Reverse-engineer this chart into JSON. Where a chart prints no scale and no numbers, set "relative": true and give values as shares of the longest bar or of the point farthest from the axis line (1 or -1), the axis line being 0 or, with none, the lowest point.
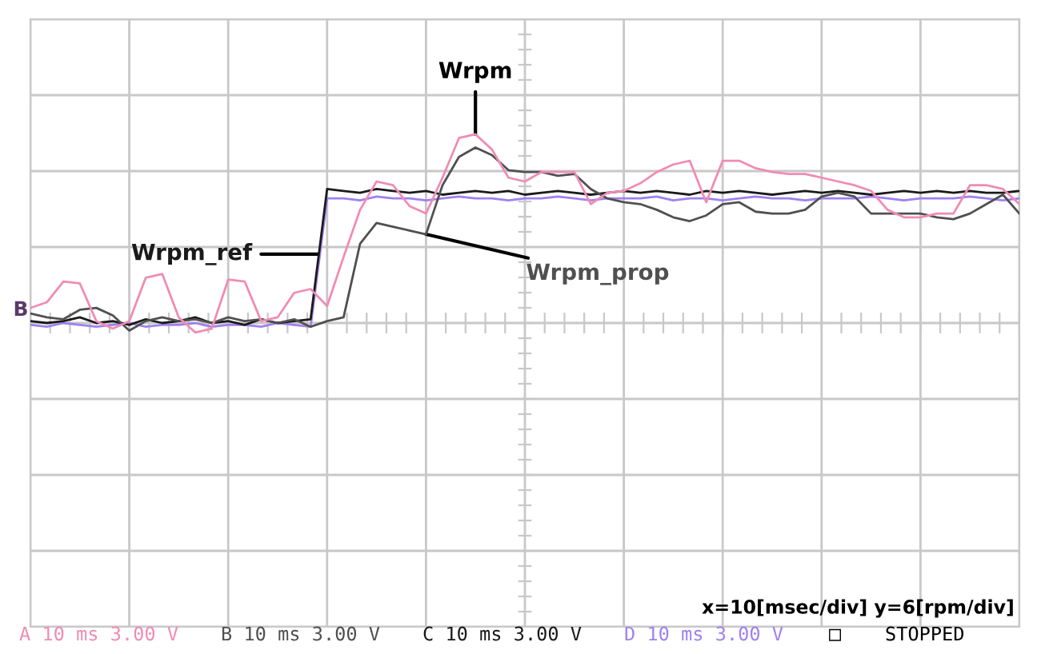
{
  "chart_data": {
    "type": "line",
    "relative": true,
    "grid": true,
    "legend": false,
    "marker": "none",
    "line_style": "solid",
    "categories": [
      null,
      null,
      null,
      null,
      null,
      null,
      null,
      null,
      null,
      null,
      null,
      null,
      null,
      null,
      null,
      null,
      null,
      null,
      null,
      null,
      null,
      null,
      null,
      null,
      null,
      null,
      null,
      null,
      null,
      null,
      null,
      null,
      null,
      null,
      null,
      null,
      null,
      null,
      null,
      null,
      null,
      null,
      null,
      null,
      null,
      null,
      null,
      null,
      null,
      null,
      null,
      null,
      null,
      null,
      null,
      null,
      null,
      null,
      null,
      null,
      null
    ],
    "series": [
      {
        "name": "Wrpm",
        "color": "#f08cb4",
        "values": [
          0.08,
          0.11,
          0.22,
          0.21,
          0.01,
          -0.03,
          0.01,
          0.24,
          0.26,
          0.03,
          -0.05,
          -0.03,
          0.23,
          0.22,
          0.01,
          0.03,
          0.16,
          0.18,
          0.09,
          0.35,
          0.6,
          0.75,
          0.73,
          0.62,
          0.58,
          0.77,
          0.98,
          1.0,
          0.92,
          0.77,
          0.75,
          0.8,
          0.8,
          0.8,
          0.63,
          0.69,
          0.7,
          0.74,
          0.8,
          0.84,
          0.86,
          0.64,
          0.86,
          0.86,
          0.82,
          0.8,
          0.79,
          0.79,
          0.77,
          0.75,
          0.73,
          0.7,
          0.6,
          0.56,
          0.56,
          0.58,
          0.58,
          0.73,
          0.73,
          0.71,
          0.63
        ]
      },
      {
        "name": "Wrpm_prop",
        "color": "#505050",
        "values": [
          0.05,
          0.03,
          0.02,
          0.07,
          0.08,
          0.04,
          -0.04,
          0.01,
          0.03,
          0.01,
          0.02,
          0,
          0.03,
          0.01,
          0.02,
          0,
          0.02,
          -0.02,
          0.01,
          0.03,
          0.42,
          0.53,
          0.51,
          0.49,
          0.47,
          0.73,
          0.88,
          0.93,
          0.89,
          0.81,
          0.8,
          0.8,
          0.78,
          0.79,
          0.71,
          0.66,
          0.64,
          0.63,
          0.6,
          0.56,
          0.54,
          0.57,
          0.63,
          0.64,
          0.59,
          0.58,
          0.58,
          0.6,
          0.67,
          0.69,
          0.67,
          0.58,
          0.58,
          0.58,
          0.58,
          0.56,
          0.55,
          0.58,
          0.63,
          0.68,
          0.58
        ]
      },
      {
        "name": "Wrpm_ref",
        "color": "#1a1a1a",
        "values": [
          0.01,
          0,
          0.01,
          0.03,
          0,
          0.01,
          -0.01,
          0.02,
          0,
          0.01,
          0.03,
          0,
          0.01,
          -0.01,
          0.02,
          0,
          0.01,
          0.02,
          0.71,
          0.7,
          0.69,
          0.71,
          0.7,
          0.69,
          0.7,
          0.68,
          0.69,
          0.7,
          0.69,
          0.7,
          0.68,
          0.69,
          0.7,
          0.69,
          0.68,
          0.69,
          0.7,
          0.69,
          0.7,
          0.69,
          0.68,
          0.7,
          0.69,
          0.7,
          0.69,
          0.68,
          0.69,
          0.7,
          0.69,
          0.7,
          0.69,
          0.68,
          0.69,
          0.7,
          0.69,
          0.7,
          0.69,
          0.7,
          0.69,
          0.69,
          0.7
        ]
      },
      {
        "color": "#a080f0",
        "values": [
          -0.01,
          -0.02,
          0,
          -0.01,
          -0.02,
          -0.01,
          0,
          -0.02,
          -0.01,
          -0.01,
          0,
          -0.02,
          -0.01,
          -0.01,
          -0.02,
          0,
          -0.01,
          -0.02,
          0.66,
          0.66,
          0.65,
          0.67,
          0.66,
          0.66,
          0.65,
          0.66,
          0.67,
          0.66,
          0.66,
          0.65,
          0.66,
          0.66,
          0.67,
          0.66,
          0.65,
          0.66,
          0.66,
          0.66,
          0.67,
          0.65,
          0.66,
          0.66,
          0.65,
          0.66,
          0.67,
          0.66,
          0.66,
          0.65,
          0.66,
          0.66,
          0.66,
          0.67,
          0.66,
          0.65,
          0.66,
          0.66,
          0.66,
          0.67,
          0.66,
          0.65,
          0.66
        ]
      }
    ],
    "annotations": [
      "x=10[msec/div] y=6[rpm/div]",
      "A 10 ms 3.00 V",
      "B 10 ms 3.00 V",
      "C 10 ms 3.00 V",
      "D 10 ms 3.00 V",
      "□",
      "STOPPED",
      "B"
    ]
  }
}
